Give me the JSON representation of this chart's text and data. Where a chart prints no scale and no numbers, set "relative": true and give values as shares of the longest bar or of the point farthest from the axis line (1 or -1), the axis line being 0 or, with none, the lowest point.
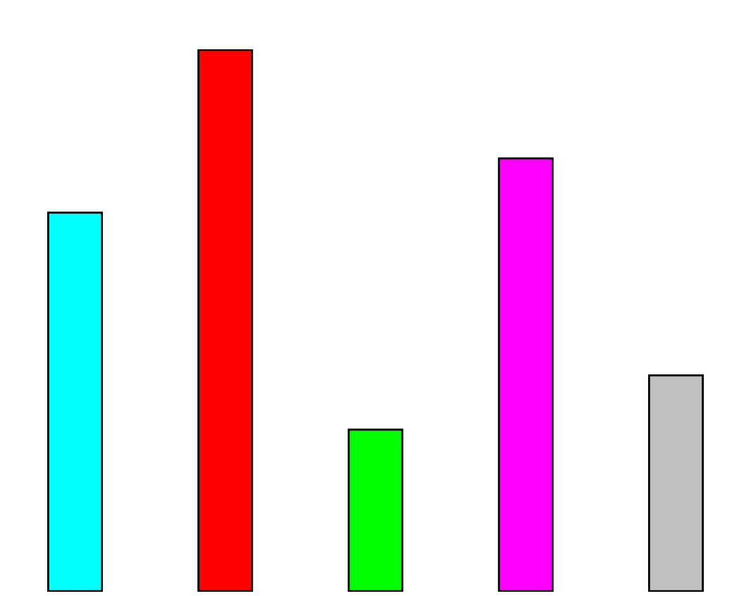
{
  "chart_data": {
    "type": "bar",
    "relative": true,
    "categories": [
      null,
      null,
      null,
      null,
      null
    ],
    "values": [
      0.7,
      1,
      0.3,
      0.8,
      0.4
    ],
    "colors": [
      "#00ffff",
      "#ff0000",
      "#00ff00",
      "#ff00ff",
      "#c0c0c0"
    ],
    "grid": false,
    "legend": false
  }
}
